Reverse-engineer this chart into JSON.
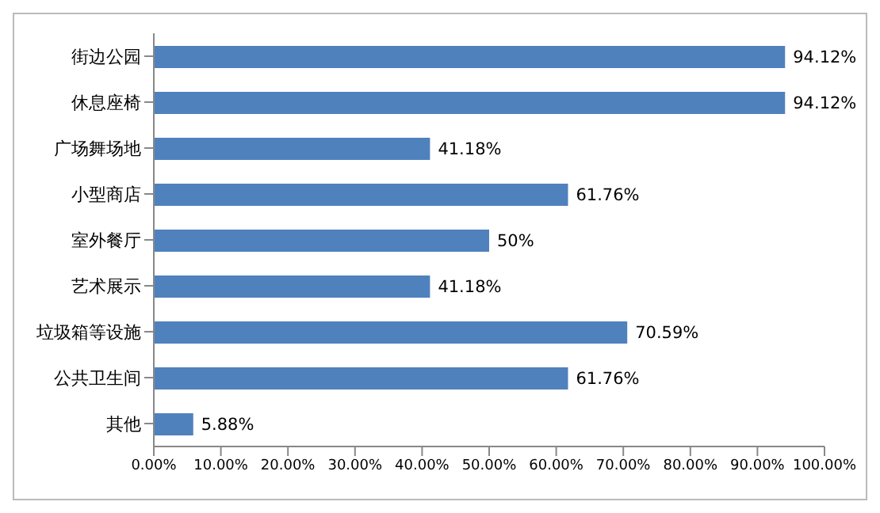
{
  "chart_data": {
    "type": "bar",
    "orientation": "horizontal",
    "categories": [
      "街边公园",
      "休息座椅",
      "广场舞场地",
      "小型商店",
      "室外餐厅",
      "艺术展示",
      "垃圾箱等设施",
      "公共卫生间",
      "其他"
    ],
    "values": [
      94.12,
      94.12,
      41.18,
      61.76,
      50,
      41.18,
      70.59,
      61.76,
      5.88
    ],
    "value_labels": [
      "94.12%",
      "94.12%",
      "41.18%",
      "61.76%",
      "50%",
      "41.18%",
      "70.59%",
      "61.76%",
      "5.88%"
    ],
    "color": "#4f81bd",
    "xlim": [
      0,
      100
    ],
    "xticks": [
      {
        "value": 0,
        "label": "0.00%"
      },
      {
        "value": 10,
        "label": "10.00%"
      },
      {
        "value": 20,
        "label": "20.00%"
      },
      {
        "value": 30,
        "label": "30.00%"
      },
      {
        "value": 40,
        "label": "40.00%"
      },
      {
        "value": 50,
        "label": "50.00%"
      },
      {
        "value": 60,
        "label": "60.00%"
      },
      {
        "value": 70,
        "label": "70.00%"
      },
      {
        "value": 80,
        "label": "80.00%"
      },
      {
        "value": 90,
        "label": "90.00%"
      },
      {
        "value": 100,
        "label": "100.00%"
      }
    ],
    "grid": false,
    "legend": false
  }
}
